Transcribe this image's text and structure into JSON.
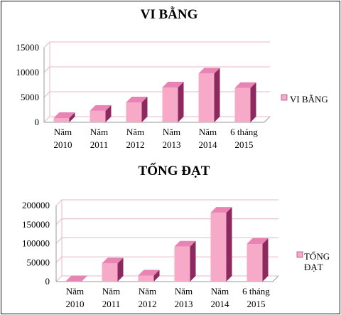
{
  "colors": {
    "bar_front": "#f7a9c8",
    "bar_side": "#8c2a60",
    "bar_top": "#e983b4",
    "grid": "#e8b6c7",
    "axis": "#9a9a9a"
  },
  "chart_data": [
    {
      "type": "bar",
      "title": "VI BẰNG",
      "categories": [
        [
          "Năm",
          "2010"
        ],
        [
          "Năm",
          "2011"
        ],
        [
          "Năm",
          "2012"
        ],
        [
          "Năm",
          "2013"
        ],
        [
          "Năm",
          "2014"
        ],
        [
          "6 tháng",
          "2015"
        ]
      ],
      "series": [
        {
          "name": "VI BẰNG",
          "legend_lines": [
            "VI BẰNG"
          ],
          "values": [
            850,
            2300,
            4000,
            7000,
            9800,
            6900
          ]
        }
      ],
      "ylim": [
        0,
        15000
      ],
      "yticks": [
        0,
        5000,
        10000,
        15000
      ],
      "grid": true,
      "legend_position": "right"
    },
    {
      "type": "bar",
      "title": "TỐNG ĐẠT",
      "categories": [
        [
          "Năm",
          "2010"
        ],
        [
          "Năm",
          "2011"
        ],
        [
          "Năm",
          "2012"
        ],
        [
          "Năm",
          "2013"
        ],
        [
          "Năm",
          "2014"
        ],
        [
          "6 tháng",
          "2015"
        ]
      ],
      "series": [
        {
          "name": "TỐNG ĐẠT",
          "legend_lines": [
            "TỐNG",
            "ĐẠT"
          ],
          "values": [
            1000,
            48000,
            16000,
            92000,
            181000,
            99000
          ]
        }
      ],
      "ylim": [
        0,
        200000
      ],
      "yticks": [
        0,
        50000,
        100000,
        150000,
        200000
      ],
      "grid": true,
      "legend_position": "right"
    }
  ]
}
